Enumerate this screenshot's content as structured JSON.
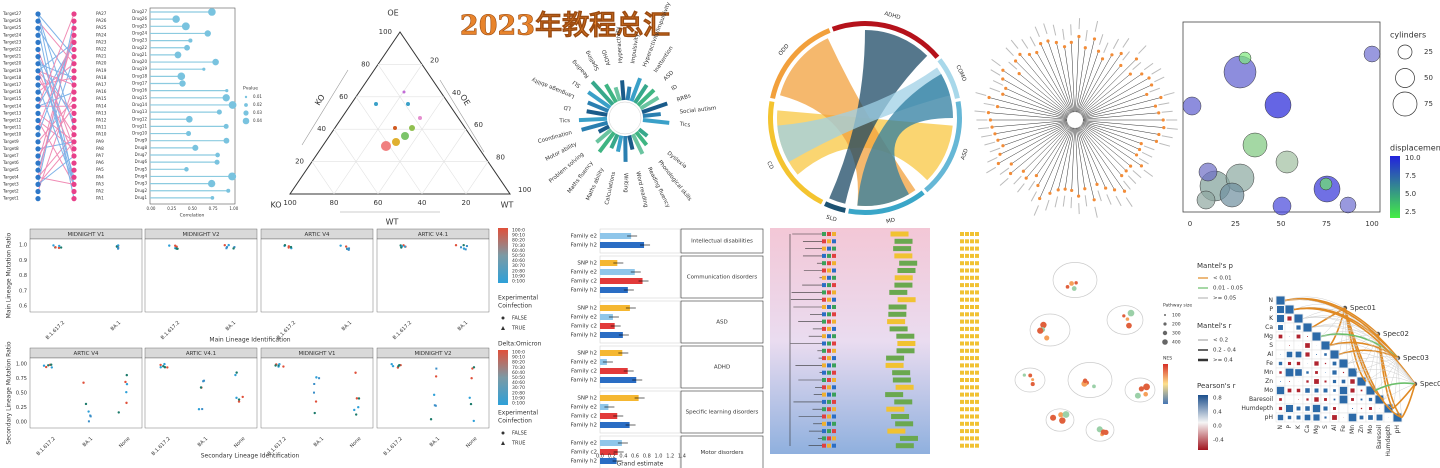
{
  "header": {
    "title": "2023年教程总汇"
  },
  "bipartite": {
    "targets": [
      "Target27",
      "Target26",
      "Target25",
      "Target24",
      "Target23",
      "Target22",
      "Target21",
      "Target20",
      "Target19",
      "Target18",
      "Target17",
      "Target16",
      "Target15",
      "Target14",
      "Target13",
      "Target12",
      "Target11",
      "Target10",
      "Target9",
      "Target8",
      "Target7",
      "Target6",
      "Target5",
      "Target4",
      "Target3",
      "Target2",
      "Target1"
    ],
    "pas": [
      "PA27",
      "PA26",
      "PA25",
      "PA24",
      "PA23",
      "PA22",
      "PA21",
      "PA20",
      "PA19",
      "PA18",
      "PA17",
      "PA16",
      "PA15",
      "PA14",
      "PA13",
      "PA12",
      "PA11",
      "PA10",
      "PA9",
      "PA8",
      "PA7",
      "PA6",
      "PA5",
      "PA4",
      "PA3",
      "PA2",
      "PA1"
    ]
  },
  "lollipop": {
    "drugs": [
      "Drug27",
      "Drug26",
      "Drug25",
      "Drug24",
      "Drug23",
      "Drug22",
      "Drug21",
      "Drug20",
      "Drug19",
      "Drug18",
      "Drug17",
      "Drug16",
      "Drug15",
      "Drug14",
      "Drug13",
      "Drug12",
      "Drug11",
      "Drug10",
      "Drug9",
      "Drug8",
      "Drug7",
      "Drug6",
      "Drug5",
      "Drug4",
      "Drug3",
      "Drug2",
      "Drug1"
    ],
    "xticks": [
      "0.00",
      "0.25",
      "0.50",
      "0.75",
      "1.00"
    ],
    "xlabel": "Correlation",
    "legend_title": "Pvalue",
    "legend_items": [
      "0.01",
      "0.02",
      "0.03",
      "0.04"
    ]
  },
  "ternary": {
    "vertices": [
      "OE",
      "KO",
      "WT"
    ],
    "axes": [
      "OE",
      "KO",
      "WT"
    ],
    "ticks": [
      "20",
      "40",
      "60",
      "80",
      "100"
    ]
  },
  "circular": {
    "labels": [
      "LD",
      "Language ability",
      "SLI",
      "Reading",
      "Spelling",
      "ADHD",
      "Hyperactivity",
      "Impulsivity",
      "Hyperactivity/Impulsivity",
      "Inattention",
      "ASD",
      "ID",
      "RRBs",
      "Social autism",
      "Tics",
      "Dyslexia",
      "Phonological skills",
      "Reading fluency",
      "Word reading",
      "Writing",
      "Calculations",
      "Maths ability",
      "Maths fluency",
      "Problem solving",
      "Motor ability",
      "Coordination",
      "Tics"
    ]
  },
  "chord": {
    "sectors": [
      "ADHD",
      "COMO",
      "ASD",
      "MD",
      "SLD",
      "CD",
      "ODD"
    ]
  },
  "bubble": {
    "xticks": [
      "0",
      "25",
      "50",
      "75",
      "100"
    ],
    "size_title": "cylinders",
    "size_items": [
      "25",
      "50",
      "75"
    ],
    "color_title": "displacement",
    "color_items": [
      "10.0",
      "7.5",
      "5.0",
      "2.5"
    ]
  },
  "facets": {
    "top": {
      "strips": [
        "MIDNIGHT V1",
        "MIDNIGHT V2",
        "ARTIC V4",
        "ARTIC V4.1"
      ],
      "ylabel": "Main Lineage Mutation Ratio",
      "xlabel": "Main Lineage Identification",
      "xticks": [
        "B.1.617.2",
        "BA.1"
      ],
      "yticks": [
        "1.0",
        "0.9",
        "0.8",
        "0.7",
        "0.6"
      ]
    },
    "bottom": {
      "strips": [
        "ARTIC V4",
        "ARTIC V4.1",
        "MIDNIGHT V1",
        "MIDNIGHT V2"
      ],
      "ylabel": "Secondary Lineage Mutation Ratio",
      "xlabel": "Secondary Lineage Identification",
      "xticks": [
        "B.1.617.2",
        "BA.1",
        "None"
      ],
      "yticks": [
        "1.00",
        "0.75",
        "0.50",
        "0.25",
        "0.00"
      ]
    },
    "legend": {
      "ratios": [
        "100:0",
        "90:10",
        "80:20",
        "70:30",
        "60:40",
        "50:50",
        "40:60",
        "30:70",
        "20:80",
        "10:90",
        "0:100"
      ],
      "ratio_title": "Delta:Omicron",
      "coinfection_title": [
        "Experimental",
        "Coinfection"
      ],
      "coinfection_items": [
        "FALSE",
        "TRUE"
      ]
    }
  },
  "genetics": {
    "groups": [
      {
        "name": "Intellectual disabilities",
        "rows": [
          "Family e2",
          "Family h2"
        ]
      },
      {
        "name": "Communication disorders",
        "rows": [
          "SNP h2",
          "Family e2",
          "Family c2",
          "Family h2"
        ]
      },
      {
        "name": "ASD",
        "rows": [
          "SNP h2",
          "Family e2",
          "Family c2",
          "Family h2"
        ]
      },
      {
        "name": "ADHD",
        "rows": [
          "SNP h2",
          "Family e2",
          "Family c2",
          "Family h2"
        ]
      },
      {
        "name": "Specific learning disorders",
        "rows": [
          "SNP h2",
          "Family e2",
          "Family c2",
          "Family h2"
        ]
      },
      {
        "name": "Motor disorders",
        "rows": [
          "Family e2",
          "Family c2",
          "Family h2"
        ]
      }
    ],
    "xticks": [
      "0.0",
      "0.2",
      "0.4",
      "0.6",
      "0.8",
      "1.0",
      "1.2",
      "1.4"
    ],
    "xlabel": "Grand estimate"
  },
  "network": {
    "size_title": "Pathway size",
    "size_items": [
      "100",
      "200",
      "300",
      "400"
    ],
    "color_title": "NES"
  },
  "mantel": {
    "p_title": "Mantel's p",
    "p_items": [
      "< 0.01",
      "0.01 - 0.05",
      ">= 0.05"
    ],
    "r_title": "Mantel's r",
    "r_items": [
      "< 0.2",
      "0.2 - 0.4",
      ">= 0.4"
    ],
    "pearson_title": "Pearson's r",
    "pearson_ticks": [
      "0.8",
      "0.4",
      "0.0",
      "-0.4"
    ],
    "variables": [
      "N",
      "P",
      "K",
      "Ca",
      "Mg",
      "S",
      "Al",
      "Fe",
      "Mn",
      "Zn",
      "Mo",
      "Baresoil",
      "Humdepth",
      "pH"
    ],
    "species": [
      "Spec01",
      "Spec02",
      "Spec03",
      "Spec0"
    ]
  }
}
